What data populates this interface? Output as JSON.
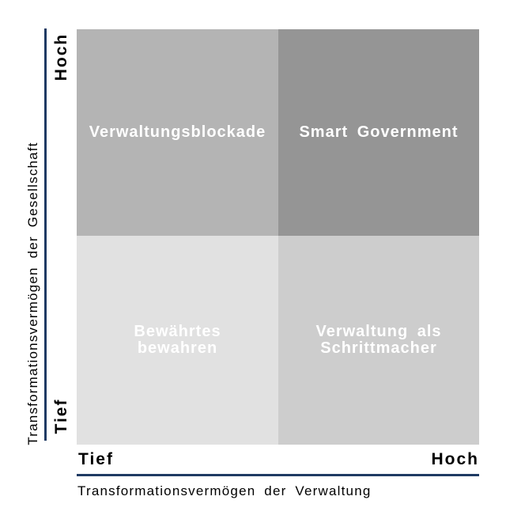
{
  "diagram": {
    "quadrants": [
      {
        "id": "top-left",
        "label": "Verwaltungsblockade",
        "color": "#b4b4b4"
      },
      {
        "id": "top-right",
        "label": "Smart Government",
        "color": "#959595"
      },
      {
        "id": "bottom-left",
        "label": "Bewährtes\nbewahren",
        "color": "#e1e1e1"
      },
      {
        "id": "bottom-right",
        "label": "Verwaltung als\nSchrittmacher",
        "color": "#cdcdcd"
      }
    ],
    "y_axis": {
      "title": "Transformationsvermögen der Gesellschaft",
      "tick_top": "Hoch",
      "tick_bottom": "Tief"
    },
    "x_axis": {
      "title": "Transformationsvermögen der Verwaltung",
      "tick_left": "Tief",
      "tick_right": "Hoch"
    },
    "colors": {
      "axis_line": "#1f3a63",
      "quadrant_label_text": "#ffffff",
      "axis_text": "#000000",
      "background": "#ffffff"
    }
  }
}
